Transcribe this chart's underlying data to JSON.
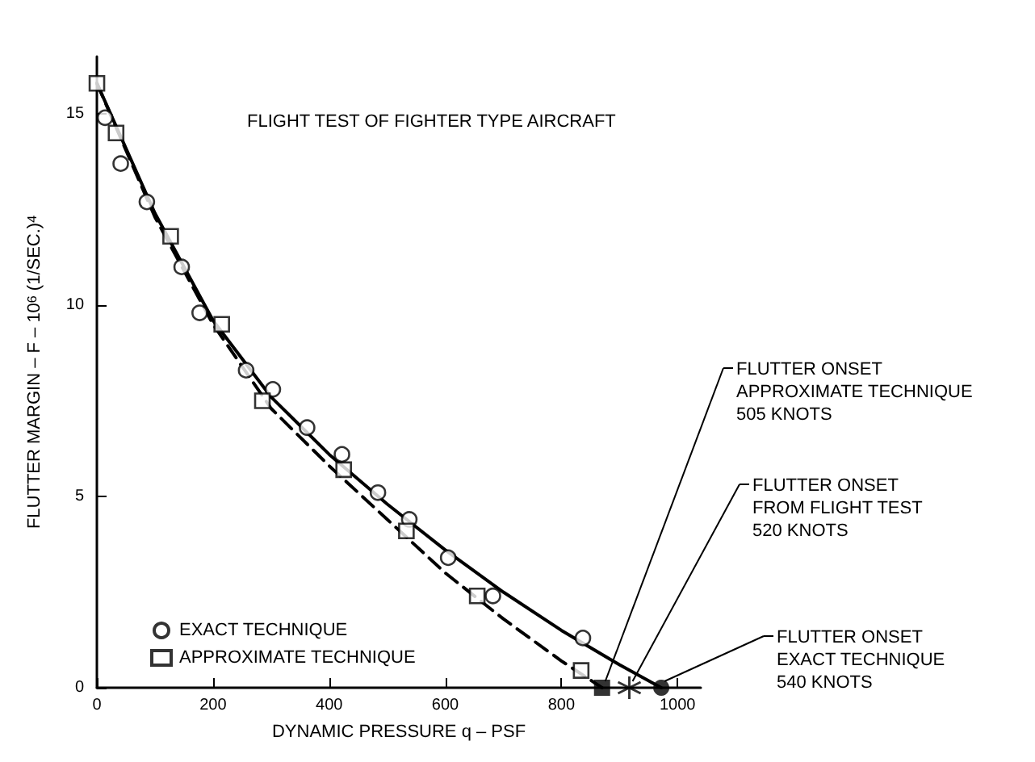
{
  "chart_data": {
    "type": "scatter",
    "title": "FLIGHT TEST OF FIGHTER TYPE AIRCRAFT",
    "xlabel": "DYNAMIC PRESSURE q – PSF",
    "ylabel": "FLUTTER MARGIN – F – 10$^{6}$ (1/SEC.)$^{4}$",
    "xlim": [
      0,
      1040
    ],
    "ylim": [
      0,
      16.5
    ],
    "xticks": [
      0,
      200,
      400,
      600,
      800,
      1000
    ],
    "yticks": [
      0,
      5,
      10,
      15
    ],
    "grid": false,
    "legend": "bottom left",
    "series": [
      {
        "name": "EXACT TECHNIQUE",
        "marker": "circle",
        "color": "#000000",
        "x": [
          14,
          41,
          86,
          146,
          177,
          257,
          303,
          362,
          422,
          484,
          538,
          605,
          682,
          837
        ],
        "values": [
          14.9,
          13.7,
          12.7,
          11.0,
          9.8,
          8.3,
          7.8,
          6.8,
          6.1,
          5.1,
          4.4,
          3.4,
          2.4,
          1.3
        ]
      },
      {
        "name": "APPROXIMATE TECHNIQUE",
        "marker": "square",
        "color": "#000000",
        "x": [
          0,
          33,
          127,
          215,
          285,
          425,
          533,
          655,
          834
        ],
        "values": [
          15.8,
          14.5,
          11.8,
          9.5,
          7.5,
          5.7,
          4.1,
          2.4,
          0.45
        ]
      },
      {
        "type": "line",
        "marker": "none",
        "line_style": "solid",
        "color": "#000000",
        "x": [
          0,
          100,
          200,
          300,
          400,
          500,
          600,
          700,
          800,
          900,
          972
        ],
        "values": [
          15.8,
          12.4,
          9.6,
          7.6,
          6.1,
          4.8,
          3.6,
          2.5,
          1.5,
          0.6,
          0
        ]
      },
      {
        "type": "line",
        "marker": "none",
        "line_style": "dashed",
        "color": "#000000",
        "x": [
          0,
          100,
          200,
          300,
          400,
          500,
          600,
          700,
          800,
          870
        ],
        "values": [
          15.8,
          12.3,
          9.5,
          7.3,
          5.8,
          4.4,
          3.0,
          1.8,
          0.7,
          0
        ]
      },
      {
        "type": "scatter",
        "marker": "square",
        "color": "#000000",
        "x": [
          870
        ],
        "values": [
          0
        ]
      },
      {
        "type": "scatter",
        "marker": "cross",
        "color": "#000000",
        "x": [
          917
        ],
        "values": [
          0
        ]
      },
      {
        "type": "scatter",
        "marker": "circle",
        "color": "#000000",
        "x": [
          972
        ],
        "values": [
          0
        ]
      }
    ],
    "annotations": [
      {
        "text": "FLUTTER ONSET\nAPPROXIMATE TECHNIQUE\n505 KNOTS",
        "x": 870,
        "y": 0
      },
      {
        "text": "FLUTTER ONSET\nFROM FLIGHT TEST\n520 KNOTS",
        "x": 917,
        "y": 0
      },
      {
        "text": "FLUTTER ONSET\nEXACT TECHNIQUE\n540 KNOTS",
        "x": 972,
        "y": 0
      }
    ]
  }
}
